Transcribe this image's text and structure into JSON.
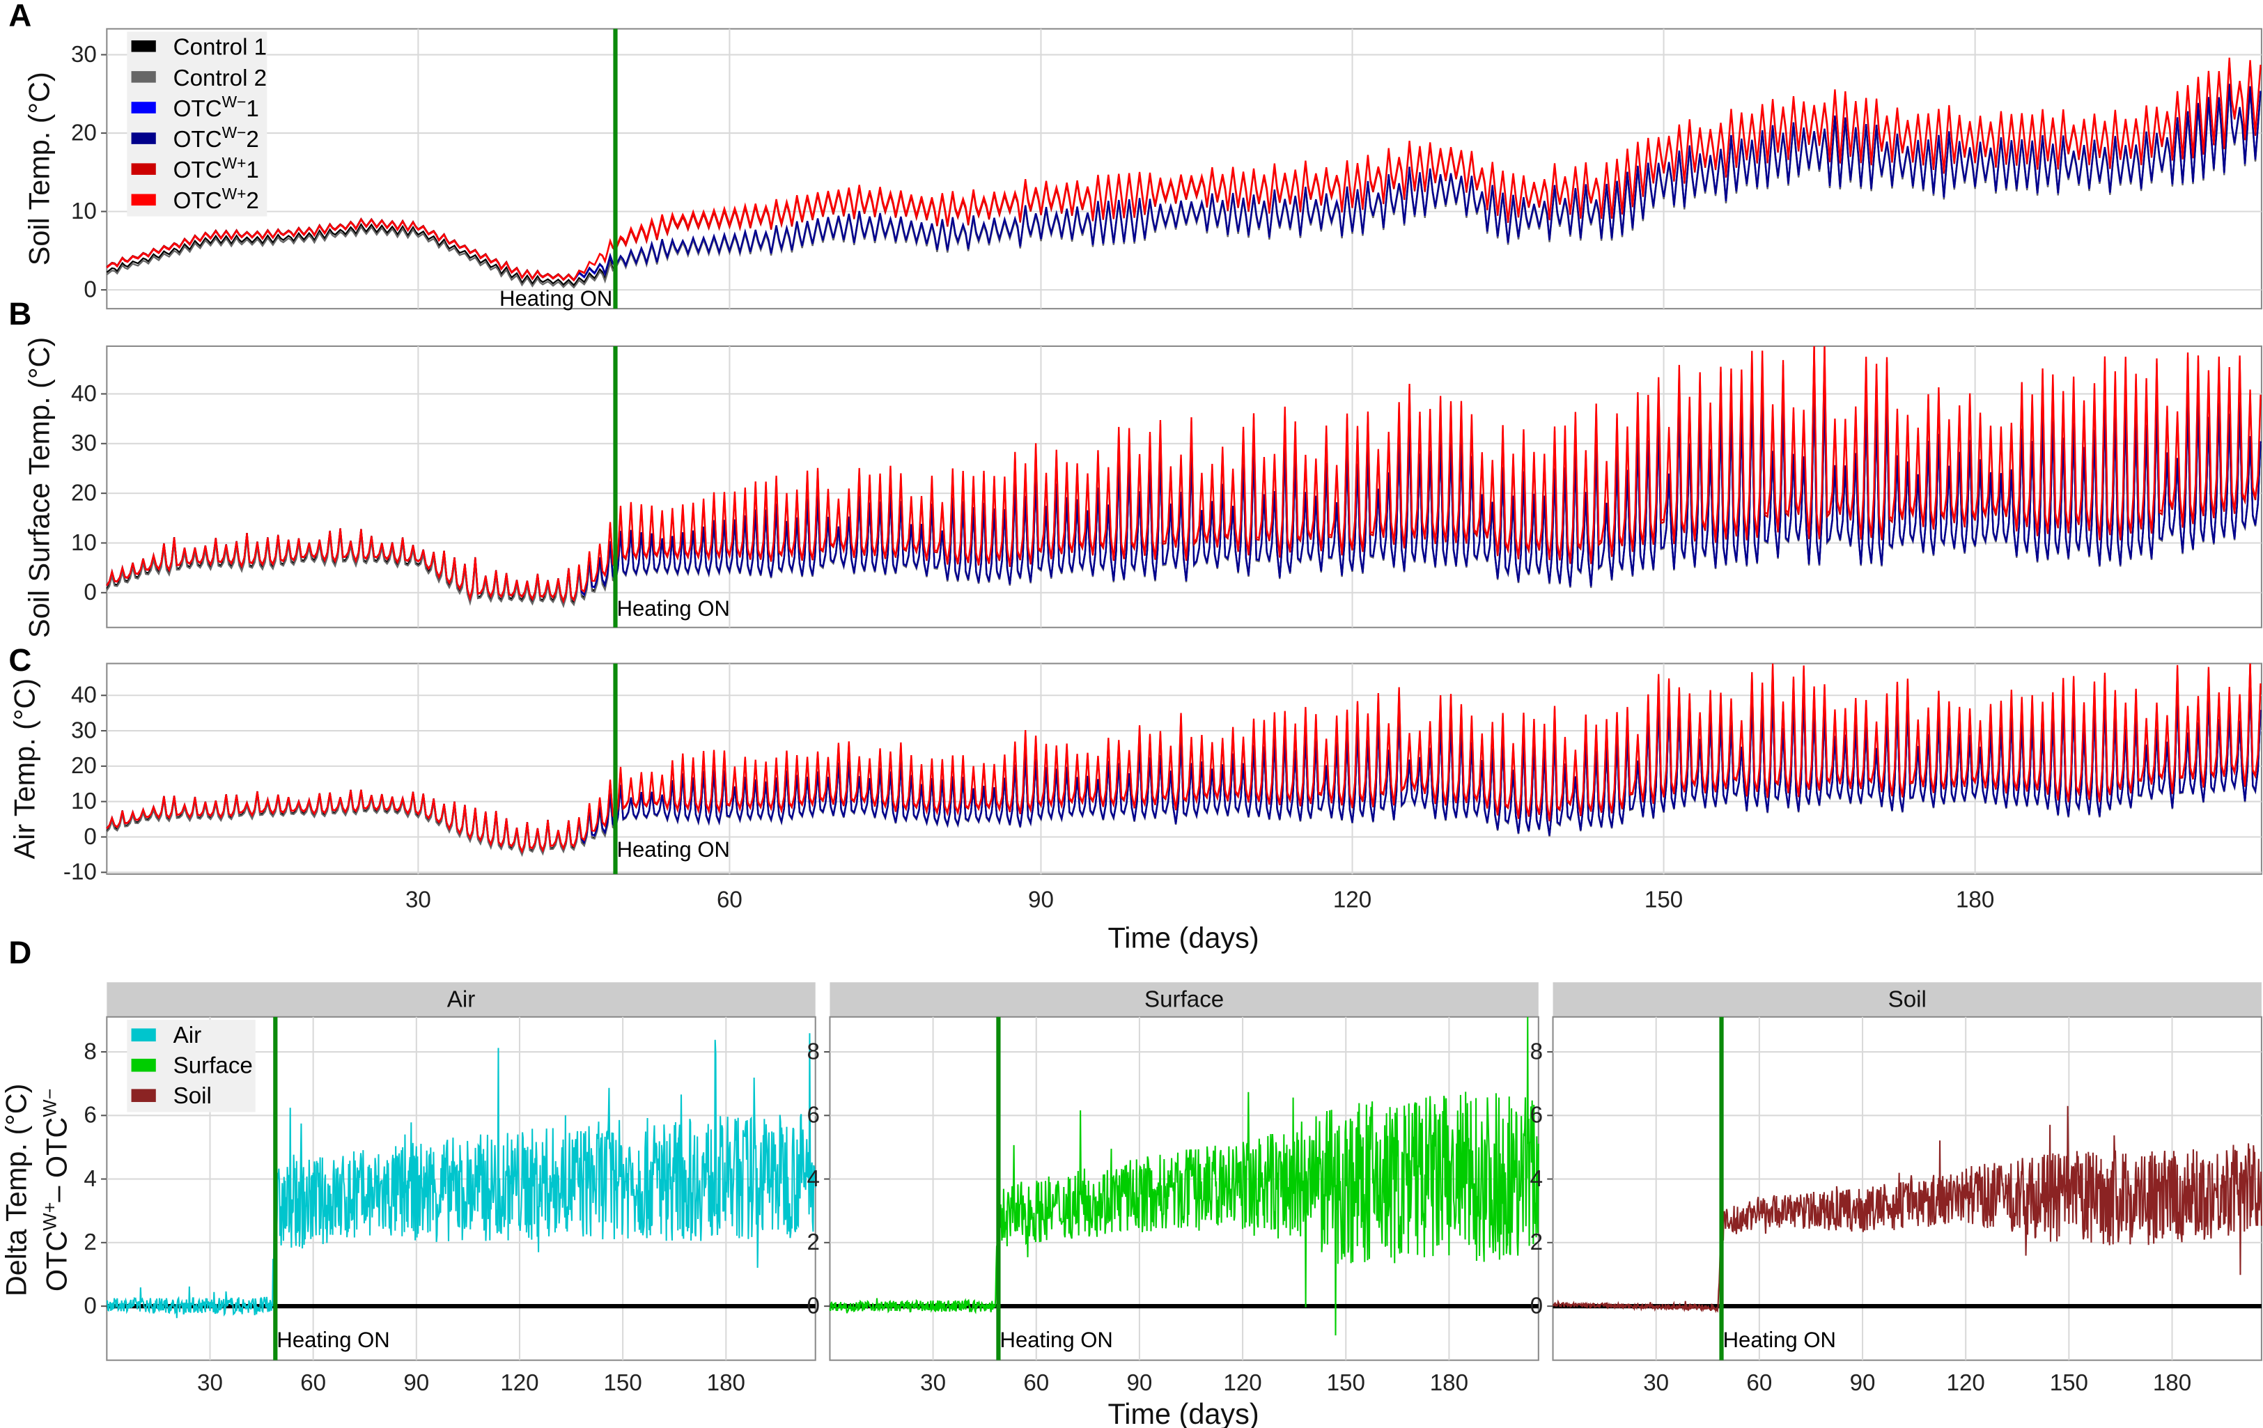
{
  "chart_data": [
    {
      "id": "A",
      "type": "line",
      "panel_label": "A",
      "ylabel": "Soil Temp. (°C)",
      "xlim": [
        0,
        207.6
      ],
      "ylim": [
        -2.4,
        33.3
      ],
      "yticks": [
        0,
        10,
        20,
        30
      ],
      "xticks": [
        30,
        60,
        90,
        120,
        150,
        180
      ],
      "grid": true,
      "annotation": "Heating ON",
      "heating_on_day": 49,
      "legend_placement": "top-left",
      "legend": [
        {
          "base": "Control 1",
          "sup": "",
          "suffix": "",
          "color": "#000000"
        },
        {
          "base": "Control 2",
          "sup": "",
          "suffix": "",
          "color": "#666666"
        },
        {
          "base": "OTC",
          "sup": "W−",
          "suffix": "1",
          "color": "#0000ff"
        },
        {
          "base": "OTC",
          "sup": "W−",
          "suffix": "2",
          "color": "#00008b"
        },
        {
          "base": "OTC",
          "sup": "W+",
          "suffix": "1",
          "color": "#cc0000"
        },
        {
          "base": "OTC",
          "sup": "W+",
          "suffix": "2",
          "color": "#ff0000"
        }
      ],
      "days": [
        0,
        5,
        10,
        15,
        20,
        25,
        30,
        35,
        40,
        45,
        50,
        55,
        60,
        65,
        70,
        75,
        80,
        85,
        90,
        95,
        100,
        105,
        110,
        115,
        120,
        125,
        130,
        135,
        140,
        145,
        150,
        155,
        160,
        165,
        170,
        175,
        180,
        185,
        190,
        195,
        200,
        205
      ],
      "control_mean": [
        3,
        5,
        7,
        7,
        7.5,
        8.5,
        8,
        5,
        2,
        1.5,
        4,
        5.5,
        6,
        6.5,
        8,
        8,
        7,
        7.5,
        8.5,
        8.5,
        9,
        10,
        9.5,
        10,
        10,
        12,
        13,
        9,
        10,
        10,
        14,
        15,
        17,
        18,
        17,
        16,
        16,
        16,
        16,
        16,
        18,
        21
      ],
      "diurnal_amplitude": [
        0.3,
        0.3,
        0.4,
        0.4,
        0.4,
        0.4,
        0.4,
        0.4,
        0.4,
        0.3,
        1,
        1,
        1.2,
        1.3,
        1.4,
        1.5,
        1.5,
        1.7,
        1.8,
        2,
        2,
        2.2,
        2.2,
        2.3,
        2.3,
        2.5,
        2.6,
        2.5,
        2.5,
        2.6,
        2.8,
        3,
        3.2,
        3.2,
        3,
        3,
        3,
        3,
        3,
        3,
        3.4,
        4
      ],
      "warming_offset": [
        0,
        0,
        0,
        0,
        0,
        0,
        0,
        0,
        0,
        0,
        2.5,
        3,
        3,
        3,
        3,
        3,
        3,
        3,
        3,
        3,
        3,
        3,
        3,
        3,
        3,
        3,
        3,
        2.5,
        2.5,
        2.5,
        3,
        3,
        3,
        3,
        3,
        3,
        3,
        3,
        3,
        3,
        3,
        3
      ]
    },
    {
      "id": "B",
      "type": "line",
      "panel_label": "B",
      "ylabel": "Soil Surface Temp. (°C)",
      "xlim": [
        0,
        207.6
      ],
      "ylim": [
        -7,
        49.6
      ],
      "yticks": [
        0,
        10,
        20,
        30,
        40
      ],
      "xticks": [
        30,
        60,
        90,
        120,
        150,
        180
      ],
      "grid": true,
      "annotation": "Heating ON",
      "heating_on_day": 49,
      "days": [
        0,
        5,
        10,
        15,
        20,
        25,
        30,
        35,
        40,
        45,
        50,
        55,
        60,
        65,
        70,
        75,
        80,
        85,
        90,
        95,
        100,
        105,
        110,
        115,
        120,
        125,
        130,
        135,
        140,
        145,
        150,
        155,
        160,
        165,
        170,
        175,
        180,
        185,
        190,
        195,
        200,
        205
      ],
      "control_mean": [
        2,
        6,
        7,
        7,
        8,
        8,
        7,
        1,
        0,
        0,
        6,
        6,
        7,
        7,
        8,
        8,
        7,
        6,
        8,
        8,
        9,
        9,
        10,
        10,
        10,
        12,
        12,
        8,
        8,
        9,
        13,
        13,
        15,
        15,
        14,
        14,
        14,
        14,
        14,
        14,
        16,
        18
      ],
      "diurnal_amplitude": [
        1.5,
        2,
        2,
        2,
        2,
        2,
        2,
        2.5,
        2.5,
        2,
        3,
        3.5,
        4,
        4.5,
        5,
        5,
        5,
        6,
        7,
        7,
        8,
        8,
        8,
        8.5,
        8.5,
        9,
        9,
        9,
        9,
        9,
        10,
        10,
        11,
        11,
        10,
        10,
        10,
        10,
        10,
        10,
        11,
        12
      ],
      "warming_offset": [
        0,
        0,
        0,
        0,
        0,
        0,
        0,
        0,
        0,
        0,
        3,
        3,
        3,
        3,
        3,
        3,
        3,
        3.5,
        3.5,
        4,
        4,
        4,
        4,
        4,
        4,
        4.5,
        4.5,
        4.5,
        4.5,
        4.5,
        5,
        5,
        5,
        5,
        5,
        5,
        5,
        5,
        5,
        5,
        5,
        5
      ]
    },
    {
      "id": "C",
      "type": "line",
      "panel_label": "C",
      "ylabel": "Air Temp. (°C)",
      "xlabel": "Time (days)",
      "xlim": [
        0,
        207.6
      ],
      "ylim": [
        -10.5,
        49
      ],
      "yticks": [
        -10,
        0,
        10,
        20,
        30,
        40
      ],
      "xticks": [
        30,
        60,
        90,
        120,
        150,
        180
      ],
      "grid": true,
      "annotation": "Heating ON",
      "heating_on_day": 49,
      "days": [
        0,
        5,
        10,
        15,
        20,
        25,
        30,
        35,
        40,
        45,
        50,
        55,
        60,
        65,
        70,
        75,
        80,
        85,
        90,
        95,
        100,
        105,
        110,
        115,
        120,
        125,
        130,
        135,
        140,
        145,
        150,
        155,
        160,
        165,
        170,
        175,
        180,
        185,
        190,
        195,
        200,
        205
      ],
      "control_mean": [
        3,
        7,
        7,
        8,
        8,
        9,
        8,
        2,
        -2,
        -1,
        7,
        8,
        8,
        8,
        10,
        9,
        7,
        7,
        9,
        9,
        10,
        10,
        11,
        11,
        11,
        13,
        12,
        8,
        8,
        9,
        15,
        15,
        16,
        16,
        15,
        15,
        15,
        15,
        14,
        15,
        17,
        19
      ],
      "diurnal_amplitude": [
        1.5,
        2,
        2,
        2,
        2,
        2,
        2,
        3,
        3,
        2.5,
        4,
        4.5,
        5,
        5,
        5.5,
        5.5,
        5,
        6,
        7,
        7,
        8,
        8,
        8,
        8,
        8.5,
        9,
        9,
        9,
        9,
        9,
        10,
        10,
        10.5,
        10.5,
        10,
        10,
        10,
        10,
        10,
        10,
        11,
        12
      ],
      "warming_offset": [
        0,
        0,
        0,
        0,
        0,
        0,
        0,
        0,
        0,
        0,
        3,
        3,
        3,
        3,
        3,
        3,
        3,
        3.5,
        3.5,
        3.5,
        3.5,
        4,
        4,
        4,
        4,
        4,
        4,
        4,
        4,
        4,
        4,
        4,
        4,
        4,
        4,
        4,
        4,
        4,
        4,
        4,
        4,
        4
      ]
    },
    {
      "id": "D",
      "type": "line",
      "panel_label": "D",
      "ylabel_line1": "Delta Temp. (°C)",
      "ylabel_line2": {
        "a": "OTC",
        "a_sup": "W+",
        "mid": "– OTC",
        "b_sup": "W−"
      },
      "xlabel": "Time (days)",
      "xlim": [
        0,
        206
      ],
      "ylim": [
        -1.7,
        9.1
      ],
      "yticks": [
        0,
        2,
        4,
        6,
        8
      ],
      "xticks": [
        30,
        60,
        90,
        120,
        150,
        180
      ],
      "grid": true,
      "annotation": "Heating ON",
      "heating_on_day": 49,
      "zero_line": 0,
      "legend_placement": "top-left",
      "legend": [
        {
          "label": "Air",
          "color": "#00c5cd"
        },
        {
          "label": "Surface",
          "color": "#00cd00"
        },
        {
          "label": "Soil",
          "color": "#8b2323"
        }
      ],
      "facets": [
        {
          "strip": "Air",
          "color": "#00c5cd",
          "days": [
            0,
            48,
            49,
            60,
            90,
            120,
            150,
            180,
            206
          ],
          "mean": [
            0.05,
            0,
            3,
            3.3,
            3.6,
            3.8,
            4,
            4,
            4.2
          ],
          "spread": [
            0.2,
            0.3,
            1.4,
            1.4,
            1.6,
            1.8,
            1.9,
            2,
            2
          ]
        },
        {
          "strip": "Surface",
          "color": "#00cd00",
          "days": [
            0,
            48,
            49,
            60,
            90,
            120,
            150,
            180,
            206
          ],
          "mean": [
            0,
            0,
            2.8,
            3,
            3.5,
            3.8,
            3.8,
            4,
            4.2
          ],
          "spread": [
            0.15,
            0.2,
            1,
            1,
            1.2,
            1.4,
            2.6,
            2.8,
            2.6
          ]
        },
        {
          "strip": "Soil",
          "color": "#8b2323",
          "days": [
            0,
            48,
            49,
            60,
            90,
            120,
            150,
            180,
            206
          ],
          "mean": [
            0.05,
            -0.05,
            2.5,
            3,
            3,
            3.5,
            3.4,
            3.4,
            3.8
          ],
          "spread": [
            0.06,
            0.1,
            0.5,
            0.5,
            0.7,
            0.9,
            1.5,
            1.5,
            1.4
          ]
        }
      ]
    }
  ]
}
